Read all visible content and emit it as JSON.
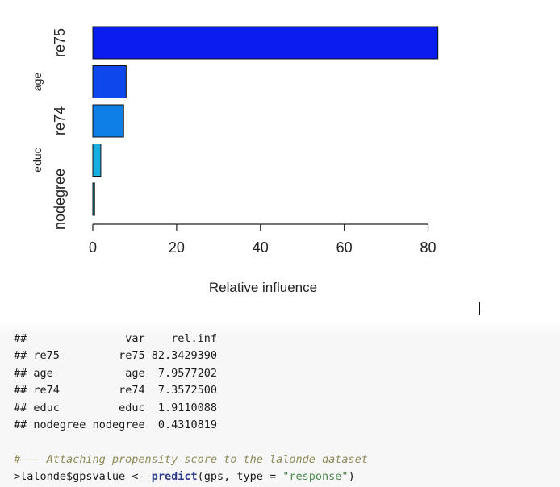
{
  "chart_data": {
    "type": "bar",
    "orientation": "horizontal",
    "categories": [
      "re75",
      "age",
      "re74",
      "educ",
      "nodegree"
    ],
    "values": [
      82.342939,
      7.9577202,
      7.35725,
      1.9110088,
      0.4310819
    ],
    "colors": [
      "#0a1cf0",
      "#0e48ec",
      "#0f7fe8",
      "#18aee3",
      "#178b90"
    ],
    "title": "",
    "xlabel": "Relative influence",
    "ylabel": "",
    "xlim": [
      0,
      82.4
    ],
    "xticks": [
      0,
      20,
      40,
      60,
      80
    ],
    "grid": false
  },
  "console": {
    "header": {
      "prefix": "##",
      "col_var": "var",
      "col_rel": "rel.inf"
    },
    "rows": [
      {
        "prefix": "##",
        "name": "re75",
        "var": "re75",
        "rel": "82.3429390"
      },
      {
        "prefix": "##",
        "name": "age",
        "var": "age",
        "rel": "7.9577202"
      },
      {
        "prefix": "##",
        "name": "re74",
        "var": "re74",
        "rel": "7.3572500"
      },
      {
        "prefix": "##",
        "name": "educ",
        "var": "educ",
        "rel": "1.9110088"
      },
      {
        "prefix": "##",
        "name": "nodegree",
        "var": "nodegree",
        "rel": "0.4310819"
      }
    ],
    "comment": "#--- Attaching propensity score to the lalonde dataset",
    "code": {
      "prompt": ">",
      "lhs": "lalonde$gpsvalue <- ",
      "fn": "predict",
      "args_open": "(gps, type = ",
      "str": "\"response\"",
      "close": ")"
    }
  }
}
